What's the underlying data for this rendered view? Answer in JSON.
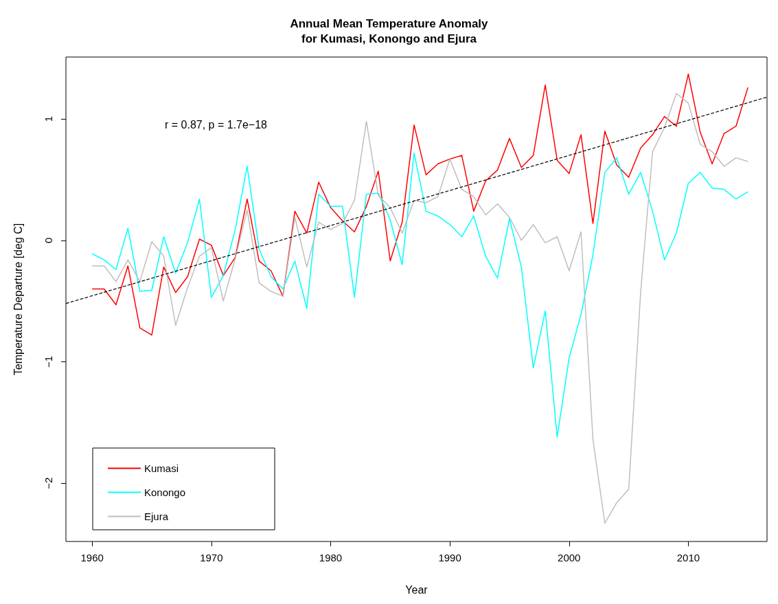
{
  "chart_data": {
    "type": "line",
    "title": "Annual Mean Temperature Anomaly\nfor Kumasi, Konongo and Ejura",
    "xlabel": "Year",
    "ylabel": "Temperature Departure [deg C]",
    "x": [
      1960,
      1961,
      1962,
      1963,
      1964,
      1965,
      1966,
      1967,
      1968,
      1969,
      1970,
      1971,
      1972,
      1973,
      1974,
      1975,
      1976,
      1977,
      1978,
      1979,
      1980,
      1981,
      1982,
      1983,
      1984,
      1985,
      1986,
      1987,
      1988,
      1989,
      1990,
      1991,
      1992,
      1993,
      1994,
      1995,
      1996,
      1997,
      1998,
      1999,
      2000,
      2001,
      2002,
      2003,
      2004,
      2005,
      2006,
      2007,
      2008,
      2009,
      2010,
      2011,
      2012,
      2013,
      2014,
      2015
    ],
    "series": [
      {
        "name": "Kumasi",
        "color": "#ff0000",
        "values": [
          -0.4,
          -0.4,
          -0.53,
          -0.21,
          -0.72,
          -0.78,
          -0.22,
          -0.43,
          -0.3,
          0.01,
          -0.04,
          -0.29,
          -0.14,
          0.34,
          -0.17,
          -0.25,
          -0.46,
          0.24,
          0.06,
          0.48,
          0.27,
          0.16,
          0.07,
          0.28,
          0.57,
          -0.17,
          0.15,
          0.95,
          0.54,
          0.63,
          0.67,
          0.7,
          0.24,
          0.49,
          0.58,
          0.84,
          0.6,
          0.7,
          1.28,
          0.66,
          0.55,
          0.87,
          0.14,
          0.9,
          0.62,
          0.52,
          0.76,
          0.87,
          1.02,
          0.94,
          1.37,
          0.89,
          0.63,
          0.88,
          0.94,
          1.26
        ]
      },
      {
        "name": "Konongo",
        "color": "#00ffff",
        "values": [
          -0.11,
          -0.16,
          -0.24,
          0.1,
          -0.42,
          -0.41,
          0.03,
          -0.27,
          -0.02,
          0.34,
          -0.47,
          -0.29,
          0.09,
          0.61,
          -0.07,
          -0.3,
          -0.4,
          -0.17,
          -0.56,
          0.38,
          0.28,
          0.28,
          -0.47,
          0.38,
          0.39,
          0.17,
          -0.2,
          0.72,
          0.24,
          0.2,
          0.13,
          0.03,
          0.2,
          -0.13,
          -0.31,
          0.18,
          -0.22,
          -1.05,
          -0.58,
          -1.62,
          -0.97,
          -0.61,
          -0.12,
          0.56,
          0.68,
          0.38,
          0.56,
          0.24,
          -0.16,
          0.06,
          0.47,
          0.56,
          0.43,
          0.42,
          0.34,
          0.4
        ]
      },
      {
        "name": "Ejura",
        "color": "#bebebe",
        "values": [
          -0.21,
          -0.21,
          -0.34,
          -0.16,
          -0.34,
          -0.01,
          -0.13,
          -0.7,
          -0.39,
          -0.13,
          -0.06,
          -0.5,
          -0.15,
          0.25,
          -0.35,
          -0.42,
          -0.46,
          0.19,
          -0.22,
          0.15,
          0.09,
          0.14,
          0.33,
          0.98,
          0.37,
          0.27,
          0.06,
          0.33,
          0.31,
          0.36,
          0.67,
          0.42,
          0.36,
          0.21,
          0.3,
          0.19,
          0.0,
          0.13,
          -0.02,
          0.03,
          -0.25,
          0.07,
          -1.64,
          -2.33,
          -2.16,
          -2.05,
          -0.43,
          0.73,
          0.93,
          1.21,
          1.13,
          0.79,
          0.73,
          0.61,
          0.68,
          0.65
        ]
      },
      {
        "color": "#000000",
        "line_style": "dashed",
        "x": [
          1957.8,
          2016.6
        ],
        "values": [
          -0.52,
          1.18
        ]
      }
    ],
    "annotations": [
      "r = 0.87, p = 1.7e−18"
    ],
    "xlim": [
      1957.8,
      2016.6
    ],
    "xticks": [
      1960,
      1970,
      1980,
      1990,
      2000,
      2010
    ],
    "ylim": [
      -2.48,
      1.51
    ],
    "yticks": [
      -2,
      -1,
      0,
      1
    ],
    "legend": "bottom left",
    "grid": false
  }
}
